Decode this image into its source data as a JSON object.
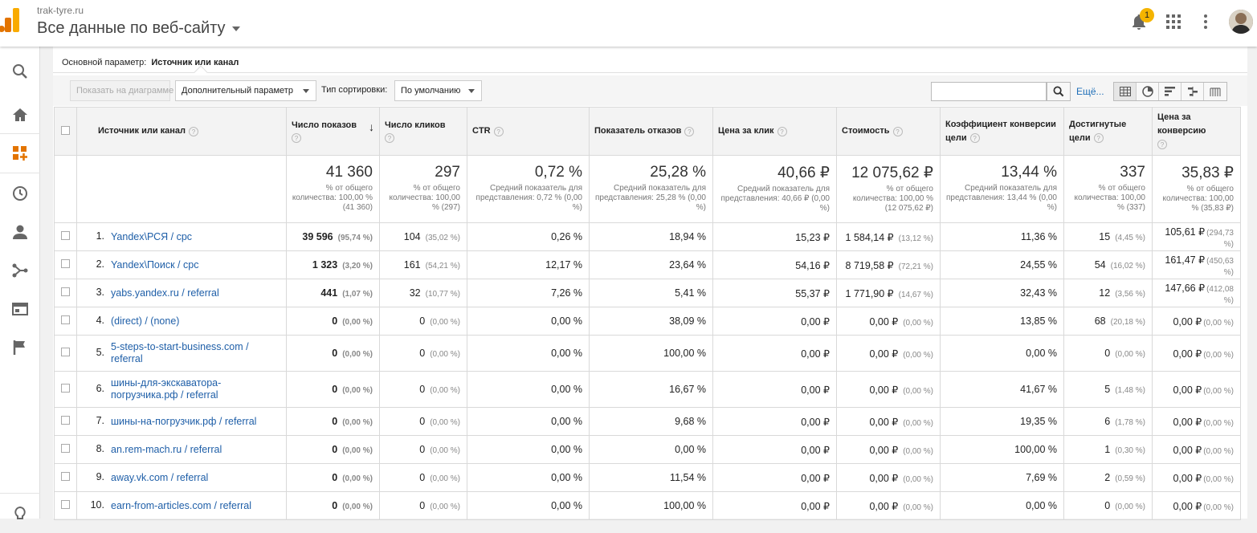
{
  "header": {
    "site": "trak-tyre.ru",
    "view": "Все данные по веб-сайту",
    "notification_count": "1"
  },
  "dimension": {
    "label": "Основной параметр:",
    "value": "Источник или канал"
  },
  "toolbar": {
    "show_on_chart": "Показать на диаграмме",
    "secondary_dimension": "Дополнительный параметр",
    "sort_type_label": "Тип сортировки:",
    "sort_value": "По умолчанию",
    "search_placeholder": "",
    "more_link": "Ещё..."
  },
  "columns": [
    "Источник или канал",
    "Число показов",
    "Число кликов",
    "CTR",
    "Показатель отказов",
    "Цена за клик",
    "Стоимость",
    "Коэффициент конверсии цели",
    "Достигнутые цели",
    "Цена за конверсию"
  ],
  "totals": [
    {
      "value": "41 360",
      "note": "% от общего количества: 100,00 % (41 360)"
    },
    {
      "value": "297",
      "note": "% от общего количества: 100,00 % (297)"
    },
    {
      "value": "0,72 %",
      "note": "Средний показатель для представления: 0,72 % (0,00 %)"
    },
    {
      "value": "25,28 %",
      "note": "Средний показатель для представления: 25,28 % (0,00 %)"
    },
    {
      "value": "40,66 ₽",
      "note": "Средний показатель для представления: 40,66 ₽ (0,00 %)"
    },
    {
      "value": "12 075,62 ₽",
      "note": "% от общего количества: 100,00 % (12 075,62 ₽)"
    },
    {
      "value": "13,44 %",
      "note": "Средний показатель для представления: 13,44 % (0,00 %)"
    },
    {
      "value": "337",
      "note": "% от общего количества: 100,00 % (337)"
    },
    {
      "value": "35,83 ₽",
      "note": "% от общего количества: 100,00 % (35,83 ₽)"
    }
  ],
  "rows": [
    {
      "n": "1.",
      "src": "Yandex\\РСЯ / cpc",
      "impr": "39 596",
      "impr_p": "(95,74 %)",
      "clicks": "104",
      "clicks_p": "(35,02 %)",
      "ctr": "0,26 %",
      "bounce": "18,94 %",
      "cpc": "15,23 ₽",
      "cost": "1 584,14 ₽",
      "cost_p": "(13,12 %)",
      "conv": "11,36 %",
      "goals": "15",
      "goals_p": "(4,45 %)",
      "cpa": "105,61 ₽",
      "cpa_p": "(294,73 %)"
    },
    {
      "n": "2.",
      "src": "Yandex\\Поиск / cpc",
      "impr": "1 323",
      "impr_p": "(3,20 %)",
      "clicks": "161",
      "clicks_p": "(54,21 %)",
      "ctr": "12,17 %",
      "bounce": "23,64 %",
      "cpc": "54,16 ₽",
      "cost": "8 719,58 ₽",
      "cost_p": "(72,21 %)",
      "conv": "24,55 %",
      "goals": "54",
      "goals_p": "(16,02 %)",
      "cpa": "161,47 ₽",
      "cpa_p": "(450,63 %)"
    },
    {
      "n": "3.",
      "src": "yabs.yandex.ru / referral",
      "impr": "441",
      "impr_p": "(1,07 %)",
      "clicks": "32",
      "clicks_p": "(10,77 %)",
      "ctr": "7,26 %",
      "bounce": "5,41 %",
      "cpc": "55,37 ₽",
      "cost": "1 771,90 ₽",
      "cost_p": "(14,67 %)",
      "conv": "32,43 %",
      "goals": "12",
      "goals_p": "(3,56 %)",
      "cpa": "147,66 ₽",
      "cpa_p": "(412,08 %)"
    },
    {
      "n": "4.",
      "src": "(direct) / (none)",
      "impr": "0",
      "impr_p": "(0,00 %)",
      "clicks": "0",
      "clicks_p": "(0,00 %)",
      "ctr": "0,00 %",
      "bounce": "38,09 %",
      "cpc": "0,00 ₽",
      "cost": "0,00 ₽",
      "cost_p": "(0,00 %)",
      "conv": "13,85 %",
      "goals": "68",
      "goals_p": "(20,18 %)",
      "cpa": "0,00 ₽",
      "cpa_p": "(0,00 %)"
    },
    {
      "n": "5.",
      "src": "5-steps-to-start-business.com / referral",
      "impr": "0",
      "impr_p": "(0,00 %)",
      "clicks": "0",
      "clicks_p": "(0,00 %)",
      "ctr": "0,00 %",
      "bounce": "100,00 %",
      "cpc": "0,00 ₽",
      "cost": "0,00 ₽",
      "cost_p": "(0,00 %)",
      "conv": "0,00 %",
      "goals": "0",
      "goals_p": "(0,00 %)",
      "cpa": "0,00 ₽",
      "cpa_p": "(0,00 %)"
    },
    {
      "n": "6.",
      "src": "шины-для-экскаватора-погрузчика.рф / referral",
      "impr": "0",
      "impr_p": "(0,00 %)",
      "clicks": "0",
      "clicks_p": "(0,00 %)",
      "ctr": "0,00 %",
      "bounce": "16,67 %",
      "cpc": "0,00 ₽",
      "cost": "0,00 ₽",
      "cost_p": "(0,00 %)",
      "conv": "41,67 %",
      "goals": "5",
      "goals_p": "(1,48 %)",
      "cpa": "0,00 ₽",
      "cpa_p": "(0,00 %)"
    },
    {
      "n": "7.",
      "src": "шины-на-погрузчик.рф / referral",
      "impr": "0",
      "impr_p": "(0,00 %)",
      "clicks": "0",
      "clicks_p": "(0,00 %)",
      "ctr": "0,00 %",
      "bounce": "9,68 %",
      "cpc": "0,00 ₽",
      "cost": "0,00 ₽",
      "cost_p": "(0,00 %)",
      "conv": "19,35 %",
      "goals": "6",
      "goals_p": "(1,78 %)",
      "cpa": "0,00 ₽",
      "cpa_p": "(0,00 %)"
    },
    {
      "n": "8.",
      "src": "an.rem-mach.ru / referral",
      "impr": "0",
      "impr_p": "(0,00 %)",
      "clicks": "0",
      "clicks_p": "(0,00 %)",
      "ctr": "0,00 %",
      "bounce": "0,00 %",
      "cpc": "0,00 ₽",
      "cost": "0,00 ₽",
      "cost_p": "(0,00 %)",
      "conv": "100,00 %",
      "goals": "1",
      "goals_p": "(0,30 %)",
      "cpa": "0,00 ₽",
      "cpa_p": "(0,00 %)"
    },
    {
      "n": "9.",
      "src": "away.vk.com / referral",
      "impr": "0",
      "impr_p": "(0,00 %)",
      "clicks": "0",
      "clicks_p": "(0,00 %)",
      "ctr": "0,00 %",
      "bounce": "11,54 %",
      "cpc": "0,00 ₽",
      "cost": "0,00 ₽",
      "cost_p": "(0,00 %)",
      "conv": "7,69 %",
      "goals": "2",
      "goals_p": "(0,59 %)",
      "cpa": "0,00 ₽",
      "cpa_p": "(0,00 %)"
    },
    {
      "n": "10.",
      "src": "earn-from-articles.com / referral",
      "impr": "0",
      "impr_p": "(0,00 %)",
      "clicks": "0",
      "clicks_p": "(0,00 %)",
      "ctr": "0,00 %",
      "bounce": "100,00 %",
      "cpc": "0,00 ₽",
      "cost": "0,00 ₽",
      "cost_p": "(0,00 %)",
      "conv": "0,00 %",
      "goals": "0",
      "goals_p": "(0,00 %)",
      "cpa": "0,00 ₽",
      "cpa_p": "(0,00 %)"
    }
  ],
  "icons": {
    "sidebar": [
      "search-icon",
      "home-icon",
      "customization-icon",
      "clock-icon",
      "person-icon",
      "acquisition-icon",
      "behavior-icon",
      "flag-icon",
      "lightbulb-icon"
    ],
    "brand_colors": {
      "logo_orange": "#f9ab00",
      "logo_dark": "#e37400",
      "link": "#1f5fa8",
      "badge": "#f4b400"
    }
  }
}
